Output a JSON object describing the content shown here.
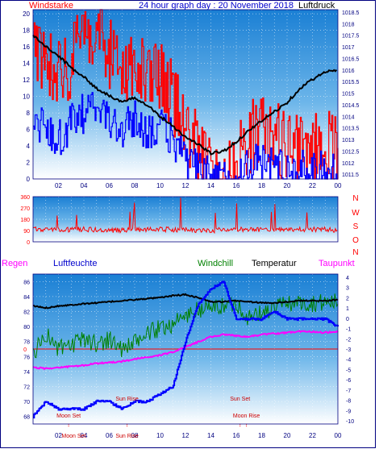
{
  "header": {
    "left_title": "Windstarke",
    "center_title": "24 hour graph day : 20 November 2018",
    "right_title": "Luftdruck"
  },
  "colors": {
    "wind_gust": "#ff0000",
    "wind_avg": "#0000ff",
    "pressure": "#000000",
    "direction": "#ff0000",
    "humidity": "#0000ff",
    "windchill": "#008000",
    "temperature": "#000000",
    "dewpoint": "#ff00ff",
    "rain": "#ff0000",
    "axis_text": "#000080"
  },
  "chart_data": [
    {
      "id": "wind-pressure",
      "type": "line",
      "title": "24 hour graph day : 20 November 2018",
      "x_ticks": [
        "02",
        "04",
        "06",
        "08",
        "10",
        "12",
        "14",
        "16",
        "18",
        "20",
        "22",
        "00"
      ],
      "left_axis": {
        "label": "Windstarke",
        "ticks": [
          "0",
          "2",
          "4",
          "6",
          "8",
          "10",
          "12",
          "14",
          "16",
          "18",
          "20"
        ],
        "ylim": [
          0,
          20.5
        ]
      },
      "right_axis": {
        "label": "Luftdruck",
        "ticks": [
          "1011.5",
          "1012",
          "1012.5",
          "1013",
          "1013.5",
          "1014",
          "1014.5",
          "1015",
          "1015.5",
          "1016",
          "1016.5",
          "1017",
          "1017.5",
          "1018",
          "1018.5"
        ],
        "ylim": [
          1011.3,
          1018.6
        ]
      },
      "pressure_series": {
        "x_hours": [
          0,
          1,
          2,
          3,
          4,
          5,
          6,
          7,
          8,
          9,
          10,
          11,
          12,
          13,
          14,
          15,
          16,
          17,
          18,
          19,
          20,
          21,
          22,
          23,
          24
        ],
        "values": [
          1017.5,
          1017.0,
          1016.6,
          1016.1,
          1015.7,
          1015.2,
          1014.9,
          1014.6,
          1014.8,
          1014.5,
          1014.0,
          1013.6,
          1013.1,
          1012.8,
          1012.4,
          1012.5,
          1012.9,
          1013.4,
          1013.8,
          1014.2,
          1014.6,
          1015.2,
          1015.6,
          1015.9,
          1016.0
        ]
      },
      "wind_gust_series": {
        "x_hours": [
          0,
          1,
          2,
          3,
          4,
          5,
          6,
          7,
          8,
          9,
          10,
          11,
          12,
          13,
          14,
          15,
          16,
          17,
          18,
          19,
          20,
          21,
          22,
          23,
          24
        ],
        "values": [
          16,
          15,
          13,
          14,
          17,
          19,
          15,
          13,
          14,
          12,
          12,
          10,
          6,
          4,
          0,
          0,
          2,
          5,
          6,
          5,
          4,
          3,
          4,
          4,
          4
        ]
      },
      "wind_avg_series": {
        "x_hours": [
          0,
          1,
          2,
          3,
          4,
          5,
          6,
          7,
          8,
          9,
          10,
          11,
          12,
          13,
          14,
          15,
          16,
          17,
          18,
          19,
          20,
          21,
          22,
          23,
          24
        ],
        "values": [
          7,
          6,
          5,
          7,
          8,
          9,
          7,
          6,
          7,
          6,
          6,
          5,
          2,
          1,
          0,
          0,
          0,
          2,
          2,
          2,
          1,
          1,
          1,
          1,
          1
        ]
      }
    },
    {
      "id": "wind-direction",
      "type": "line",
      "x_ticks": [],
      "left_axis": {
        "ticks": [
          "0",
          "90",
          "180",
          "270",
          "360"
        ],
        "ylim": [
          0,
          360
        ]
      },
      "right_axis_labels": [
        "N",
        "W",
        "S",
        "O",
        "N"
      ],
      "direction_series": {
        "x_hours": [
          0,
          2,
          4,
          6,
          8,
          10,
          12,
          14,
          16,
          18,
          20,
          22,
          24
        ],
        "values": [
          100,
          95,
          100,
          90,
          95,
          100,
          95,
          90,
          100,
          95,
          95,
          100,
          95
        ]
      }
    },
    {
      "id": "temp-humidity",
      "type": "line",
      "x_ticks": [
        "02",
        "04",
        "06",
        "08",
        "10",
        "12",
        "14",
        "16",
        "18",
        "20",
        "22",
        "00"
      ],
      "left_axis": {
        "label": "Luftfeuchte",
        "ticks": [
          "68",
          "70",
          "72",
          "74",
          "76",
          "78",
          "80",
          "82",
          "84",
          "86"
        ],
        "ylim": [
          67,
          87
        ]
      },
      "right_axis": {
        "ticks": [
          "-10",
          "-9",
          "-8",
          "-7",
          "-6",
          "-5",
          "-4",
          "-3",
          "-2",
          "-1",
          "0",
          "1",
          "2",
          "3",
          "4"
        ],
        "ylim": [
          -10.3,
          4.3
        ]
      },
      "legend": [
        "Regen",
        "Luftfeuchte",
        "Windchill",
        "Temperatur",
        "Taupunkt"
      ],
      "rain_baseline_label": "0",
      "humidity_series": {
        "x_hours": [
          0,
          1,
          2,
          3,
          4,
          5,
          6,
          7,
          8,
          9,
          10,
          11,
          12,
          13,
          14,
          15,
          16,
          17,
          18,
          19,
          20,
          21,
          22,
          23,
          24
        ],
        "values": [
          68,
          70,
          69,
          69,
          69,
          70,
          70,
          69,
          70,
          70,
          71,
          72,
          78,
          83,
          85,
          86,
          81,
          81,
          81,
          82,
          81,
          81,
          81,
          81,
          80
        ]
      },
      "temperature_series": {
        "x_hours": [
          0,
          1,
          2,
          3,
          4,
          5,
          6,
          7,
          8,
          9,
          10,
          11,
          12,
          13,
          14,
          15,
          16,
          17,
          18,
          19,
          20,
          21,
          22,
          23,
          24
        ],
        "values": [
          1.2,
          1.0,
          1.2,
          1.3,
          1.4,
          1.5,
          1.6,
          1.7,
          1.8,
          1.9,
          2.0,
          2.2,
          2.3,
          2.0,
          1.6,
          1.6,
          1.7,
          1.6,
          1.5,
          1.5,
          1.6,
          1.7,
          1.7,
          1.7,
          1.8
        ]
      },
      "windchill_series": {
        "x_hours": [
          0,
          1,
          2,
          3,
          4,
          5,
          6,
          7,
          8,
          9,
          10,
          11,
          12,
          13,
          14,
          15,
          16,
          17,
          18,
          19,
          20,
          21,
          22,
          23,
          24
        ],
        "values": [
          -3.5,
          -1.5,
          -3.0,
          -2.8,
          -2.0,
          -2.5,
          -2.0,
          -3.0,
          -2.5,
          -1.5,
          -1.0,
          -0.5,
          0.2,
          0.8,
          1.0,
          1.2,
          1.5,
          0.0,
          0.5,
          1.0,
          1.5,
          1.5,
          1.5,
          1.5,
          1.6
        ]
      },
      "dewpoint_series": {
        "x_hours": [
          0,
          1,
          2,
          3,
          4,
          5,
          6,
          7,
          8,
          9,
          10,
          11,
          12,
          13,
          14,
          15,
          16,
          17,
          18,
          19,
          20,
          21,
          22,
          23,
          24
        ],
        "values": [
          -4.8,
          -4.9,
          -4.8,
          -4.7,
          -4.6,
          -4.4,
          -4.3,
          -4.2,
          -4.0,
          -3.8,
          -3.6,
          -3.3,
          -2.8,
          -2.3,
          -1.8,
          -1.6,
          -1.7,
          -1.8,
          -1.6,
          -1.5,
          -1.4,
          -1.3,
          -1.3,
          -1.4,
          -1.3
        ]
      },
      "annotations": [
        {
          "text": "Moon Set",
          "hour": 2.8
        },
        {
          "text": "Sun Rise",
          "hour": 7.4
        },
        {
          "text": "Sun Set",
          "hour": 16.3
        },
        {
          "text": "Moon Rise",
          "hour": 16.8
        }
      ],
      "bottom_overlap_labels": [
        "Moon Set",
        "Sun Rise"
      ]
    }
  ]
}
